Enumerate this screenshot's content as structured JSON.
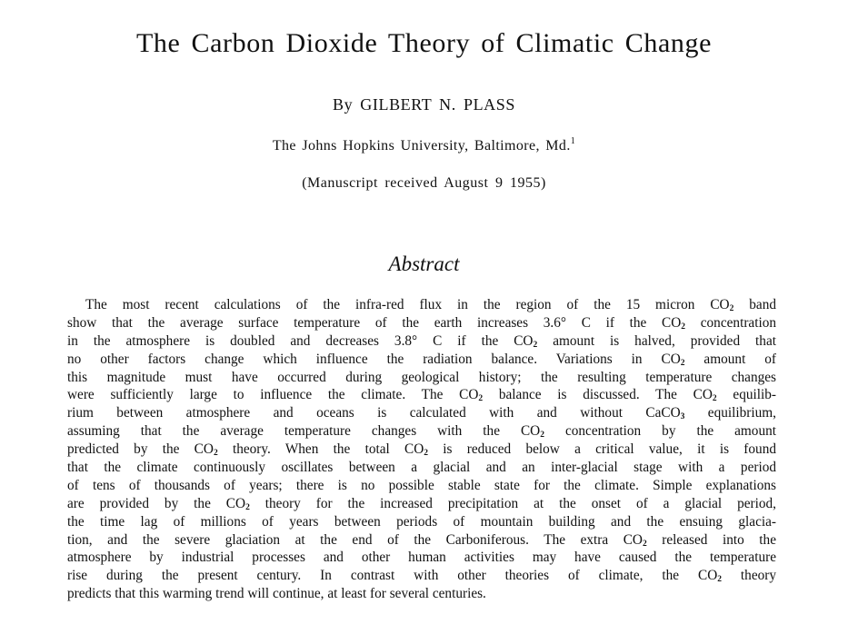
{
  "title": "The Carbon Dioxide Theory of Climatic Change",
  "byline": "By GILBERT N. PLASS",
  "affiliation": {
    "text": "The Johns Hopkins University, Baltimore, Md.",
    "footnote_mark": "1"
  },
  "received": "(Manuscript received August 9 1955)",
  "abstract_heading": "Abstract",
  "abstract_lines": [
    [
      {
        "t": "The most recent calculations of the infra-red flux in the region of the 15 micron CO"
      },
      {
        "sub": "2"
      },
      {
        "t": " band"
      }
    ],
    [
      {
        "t": "show that the average surface temperature of the earth increases 3.6° C if the CO"
      },
      {
        "sub": "2"
      },
      {
        "t": " concentration"
      }
    ],
    [
      {
        "t": "in the atmosphere is doubled and decreases 3.8° C if the CO"
      },
      {
        "sub": "2"
      },
      {
        "t": " amount is halved, provided that"
      }
    ],
    [
      {
        "t": "no other factors change which influence the radiation balance. Variations in CO"
      },
      {
        "sub": "2"
      },
      {
        "t": " amount of"
      }
    ],
    [
      {
        "t": "this magnitude must have occurred during geological history; the resulting temperature changes"
      }
    ],
    [
      {
        "t": "were sufficiently large to influence the climate. The CO"
      },
      {
        "sub": "2"
      },
      {
        "t": " balance is discussed. The CO"
      },
      {
        "sub": "2"
      },
      {
        "t": " equilib-"
      }
    ],
    [
      {
        "t": "rium between atmosphere and oceans is calculated with and without CaCO"
      },
      {
        "sub": "3"
      },
      {
        "t": " equilibrium,"
      }
    ],
    [
      {
        "t": "assuming that the average temperature changes with the CO"
      },
      {
        "sub": "2"
      },
      {
        "t": " concentration by the amount"
      }
    ],
    [
      {
        "t": "predicted by the CO"
      },
      {
        "sub": "2"
      },
      {
        "t": " theory. When the total CO"
      },
      {
        "sub": "2"
      },
      {
        "t": " is reduced below a critical value, it is found"
      }
    ],
    [
      {
        "t": "that the climate continuously oscillates between a glacial and an inter-glacial stage with a period"
      }
    ],
    [
      {
        "t": "of tens of thousands of years; there is no possible stable state for the climate. Simple explanations"
      }
    ],
    [
      {
        "t": "are provided by the CO"
      },
      {
        "sub": "2"
      },
      {
        "t": " theory for the increased precipitation at the onset of a glacial period,"
      }
    ],
    [
      {
        "t": "the time lag of millions of years between periods of mountain building and the ensuing glacia-"
      }
    ],
    [
      {
        "t": "tion, and the severe glaciation at the end of the Carboniferous. The extra CO"
      },
      {
        "sub": "2"
      },
      {
        "t": " released into the"
      }
    ],
    [
      {
        "t": "atmosphere by industrial processes and other human activities may have caused the temperature"
      }
    ],
    [
      {
        "t": "rise during the present century. In contrast with other theories of climate, the CO"
      },
      {
        "sub": "2"
      },
      {
        "t": " theory"
      }
    ],
    [
      {
        "t": "predicts that this warming trend will continue, at least for several centuries."
      }
    ]
  ]
}
